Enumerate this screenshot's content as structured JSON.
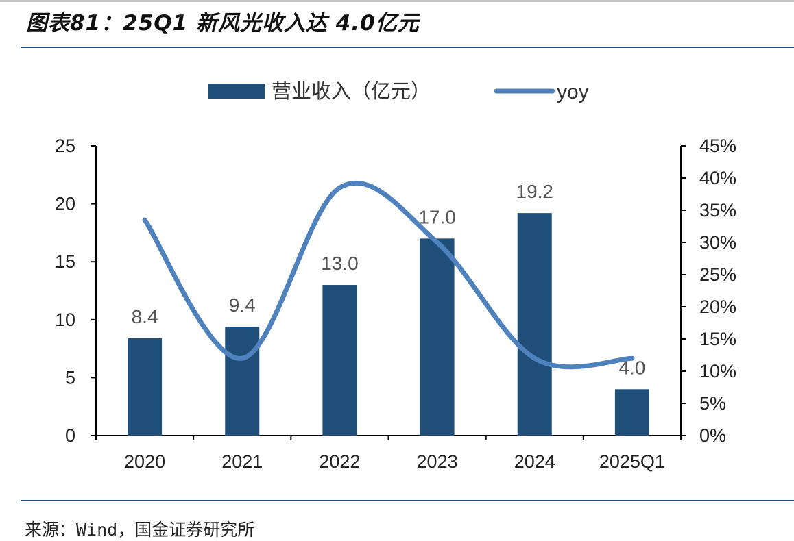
{
  "figure": {
    "title": "图表81：25Q1 新风光收入达 4.0亿元",
    "source": "来源：Wind，国金证券研究所"
  },
  "chart_data": {
    "type": "bar",
    "categories": [
      "2020",
      "2021",
      "2022",
      "2023",
      "2024",
      "2025Q1"
    ],
    "series": [
      {
        "name": "营业收入（亿元）",
        "type": "bar",
        "axis": "left",
        "color": "#1f4e79",
        "values": [
          8.4,
          9.4,
          13.0,
          17.0,
          19.2,
          4.0
        ],
        "labels": [
          "8.4",
          "9.4",
          "13.0",
          "17.0",
          "19.2",
          "4.0"
        ]
      },
      {
        "name": "yoy",
        "type": "line",
        "axis": "right",
        "color": "#4f81bd",
        "values": [
          0.335,
          0.12,
          0.385,
          0.3,
          0.12,
          0.12
        ]
      }
    ],
    "ylim": [
      0,
      25
    ],
    "yticks": [
      "0",
      "5",
      "10",
      "15",
      "20",
      "25"
    ],
    "y2lim": [
      0,
      0.45
    ],
    "y2ticks": [
      "0%",
      "5%",
      "10%",
      "15%",
      "20%",
      "25%",
      "30%",
      "35%",
      "40%",
      "45%"
    ],
    "legend_position": "top-center",
    "grid": false
  }
}
